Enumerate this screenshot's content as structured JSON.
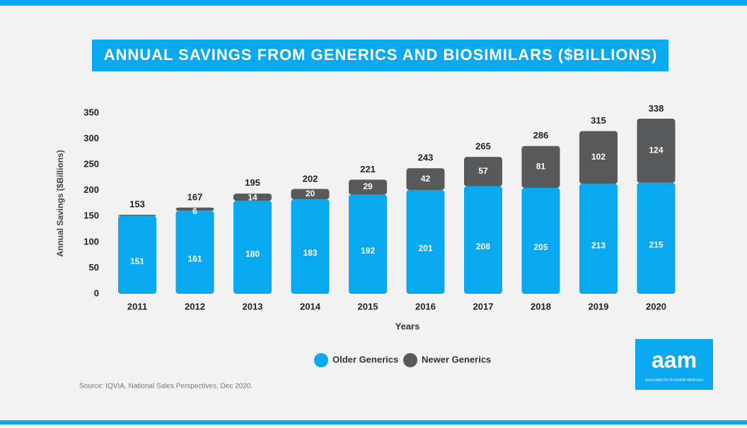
{
  "chart_data": {
    "type": "stacked_bar",
    "title": "ANNUAL SAVINGS FROM GENERICS AND BIOSIMILARS ($BILLIONS)",
    "x_label": "Years",
    "y_label": "Annual Savings ($Billions)",
    "categories": [
      "2011",
      "2012",
      "2013",
      "2014",
      "2015",
      "2016",
      "2017",
      "2018",
      "2019",
      "2020"
    ],
    "series": [
      {
        "name": "Older Generics",
        "color": "#0aa8ee",
        "values": [
          151,
          161,
          180,
          183,
          192,
          201,
          208,
          205,
          213,
          215
        ]
      },
      {
        "name": "Newer Generics",
        "color": "#58595b",
        "values": [
          2,
          6,
          14,
          20,
          29,
          42,
          57,
          81,
          102,
          124
        ],
        "value_labels": [
          null,
          "6",
          "14",
          "20",
          "29",
          "42",
          "57",
          "81",
          "102",
          "124"
        ]
      }
    ],
    "totals": [
      153,
      167,
      195,
      202,
      221,
      243,
      265,
      286,
      315,
      338
    ],
    "ylim": [
      0,
      350
    ],
    "yticks": [
      0,
      50,
      100,
      150,
      200,
      250,
      300,
      350
    ],
    "grid": false,
    "legend": "bottom",
    "source": "Source: IQVIA, National Sales Perspectives, Dec 2020.",
    "logo": {
      "name": "aam",
      "tagline": "Association for Accessible Medicines"
    }
  }
}
